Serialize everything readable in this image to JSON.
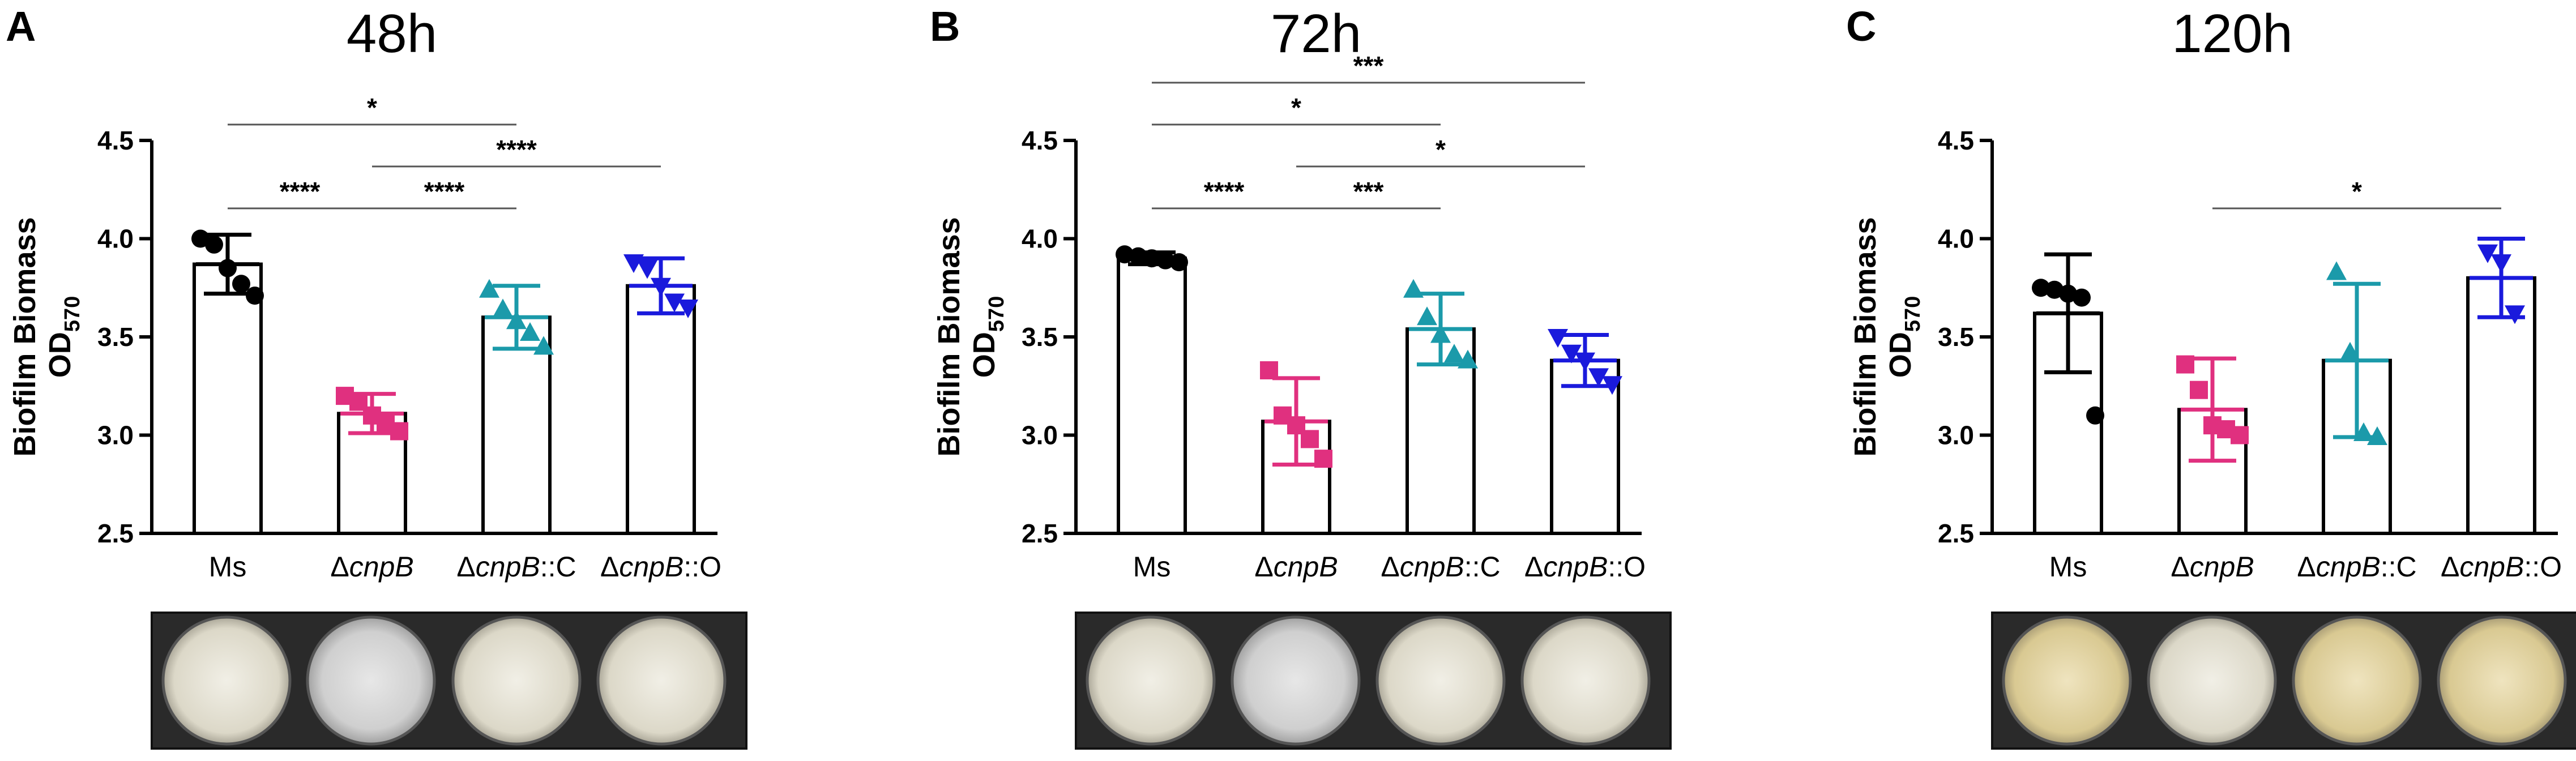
{
  "colors": {
    "Ms": "#000000",
    "dcnpB": "#e0307f",
    "dcnpB_C": "#1b9aaa",
    "dcnpB_O": "#1a1adc"
  },
  "marker_shapes": [
    "circle",
    "square",
    "triangle-up",
    "triangle-down"
  ],
  "categories": [
    {
      "prefix": "",
      "italic": "",
      "suffix": "Ms"
    },
    {
      "prefix": "Δ",
      "italic": "cnpB",
      "suffix": ""
    },
    {
      "prefix": "Δ",
      "italic": "cnpB",
      "suffix": "::C"
    },
    {
      "prefix": "Δ",
      "italic": "cnpB",
      "suffix": "::O"
    }
  ],
  "ylabel": {
    "line1": "Biofilm Biomass",
    "line2_main": "OD",
    "line2_sub": "570"
  },
  "chart_data": [
    {
      "type": "bar",
      "panel_letter": "A",
      "title": "48h",
      "ylim": [
        2.5,
        4.5
      ],
      "yticks": [
        "2.5",
        "3.0",
        "3.5",
        "4.0",
        "4.5"
      ],
      "bars": [
        {
          "mean": 3.87,
          "sd": 0.15,
          "points": [
            4.0,
            3.97,
            3.85,
            3.77,
            3.71
          ]
        },
        {
          "mean": 3.11,
          "sd": 0.1,
          "points": [
            3.2,
            3.17,
            3.1,
            3.06,
            3.02
          ]
        },
        {
          "mean": 3.6,
          "sd": 0.16,
          "points": [
            3.74,
            3.64,
            3.58,
            3.52,
            3.45
          ]
        },
        {
          "mean": 3.76,
          "sd": 0.14,
          "points": [
            3.88,
            3.85,
            3.76,
            3.68,
            3.65
          ]
        }
      ],
      "significance": [
        {
          "from": 1,
          "to": 3,
          "label": "****"
        },
        {
          "from": 0,
          "to": 2,
          "label": "*"
        },
        {
          "from": 0,
          "to": 1,
          "label": "****"
        },
        {
          "from": 1,
          "to": 2,
          "label": "****"
        }
      ]
    },
    {
      "type": "bar",
      "panel_letter": "B",
      "title": "72h",
      "ylim": [
        2.5,
        4.5
      ],
      "yticks": [
        "2.5",
        "3.0",
        "3.5",
        "4.0",
        "4.5"
      ],
      "bars": [
        {
          "mean": 3.9,
          "sd": 0.03,
          "points": [
            3.92,
            3.91,
            3.9,
            3.89,
            3.88
          ]
        },
        {
          "mean": 3.07,
          "sd": 0.22,
          "points": [
            3.33,
            3.1,
            3.05,
            2.98,
            2.88
          ]
        },
        {
          "mean": 3.54,
          "sd": 0.18,
          "points": [
            3.74,
            3.6,
            3.51,
            3.41,
            3.38
          ]
        },
        {
          "mean": 3.38,
          "sd": 0.13,
          "points": [
            3.5,
            3.42,
            3.38,
            3.3,
            3.26
          ]
        }
      ],
      "significance": [
        {
          "from": 0,
          "to": 3,
          "label": "***"
        },
        {
          "from": 1,
          "to": 3,
          "label": "*"
        },
        {
          "from": 0,
          "to": 2,
          "label": "*"
        },
        {
          "from": 0,
          "to": 1,
          "label": "****"
        },
        {
          "from": 1,
          "to": 2,
          "label": "***"
        }
      ]
    },
    {
      "type": "bar",
      "panel_letter": "C",
      "title": "120h",
      "ylim": [
        2.5,
        4.5
      ],
      "yticks": [
        "2.5",
        "3.0",
        "3.5",
        "4.0",
        "4.5"
      ],
      "bars": [
        {
          "mean": 3.62,
          "sd": 0.3,
          "points": [
            3.75,
            3.74,
            3.72,
            3.7,
            3.1
          ]
        },
        {
          "mean": 3.13,
          "sd": 0.26,
          "points": [
            3.36,
            3.23,
            3.05,
            3.03,
            3.0
          ]
        },
        {
          "mean": 3.38,
          "sd": 0.39,
          "points": [
            3.83,
            3.42,
            3.01,
            2.99
          ]
        },
        {
          "mean": 3.8,
          "sd": 0.2,
          "points": [
            3.93,
            3.88,
            3.62
          ]
        }
      ],
      "significance": [
        {
          "from": 1,
          "to": 3,
          "label": "*"
        }
      ]
    }
  ]
}
